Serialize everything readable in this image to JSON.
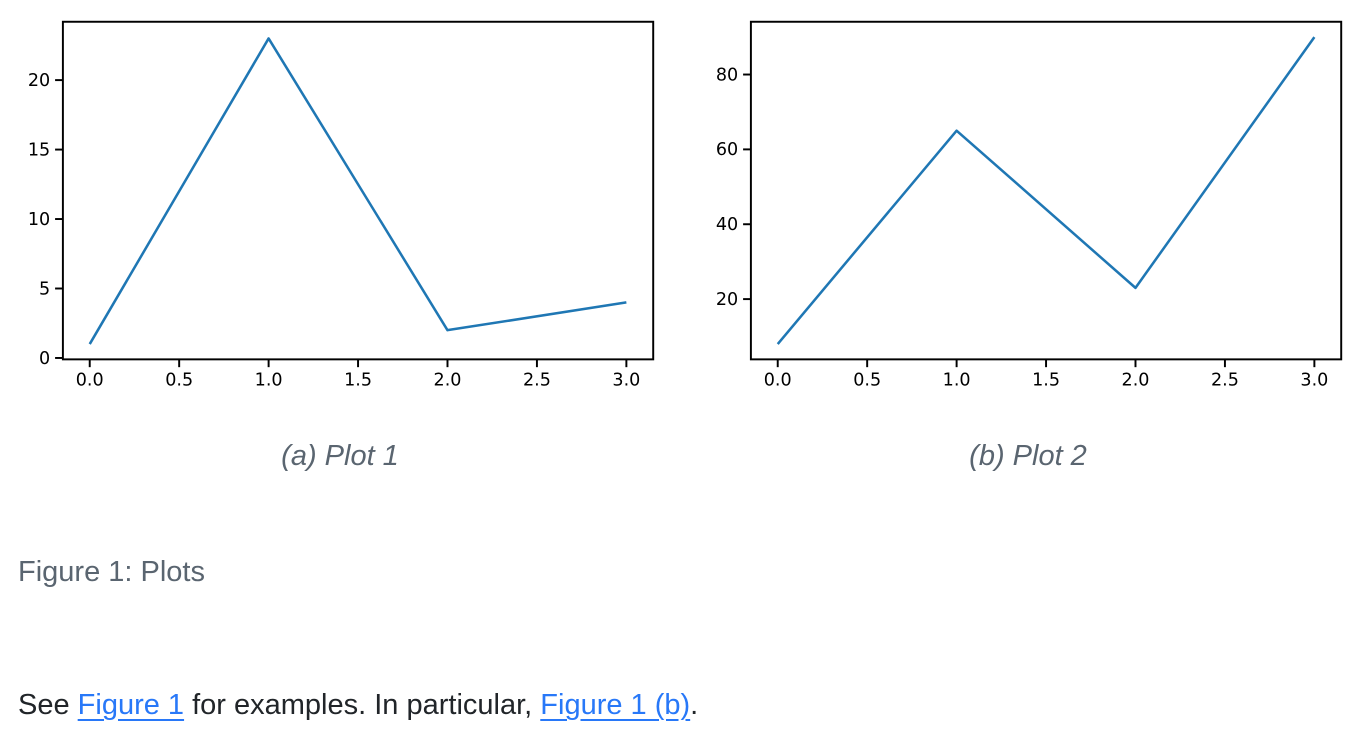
{
  "colors": {
    "line": "#1f77b4",
    "axis": "#000000",
    "link": "#2878f8",
    "caption": "#5a6570",
    "body_text": "#212529"
  },
  "figure": {
    "caption": "Figure 1: Plots",
    "subfigures": [
      {
        "label": "(a) Plot 1"
      },
      {
        "label": "(b) Plot 2"
      }
    ]
  },
  "paragraph": {
    "segments": [
      {
        "type": "text",
        "text": "See "
      },
      {
        "type": "link",
        "text": "Figure 1",
        "name": "figure-1-link"
      },
      {
        "type": "text",
        "text": " for examples. In particular, "
      },
      {
        "type": "link",
        "text": "Figure 1 (b)",
        "name": "figure-1b-link"
      },
      {
        "type": "text",
        "text": "."
      }
    ]
  },
  "chart_data": [
    {
      "type": "line",
      "title": "",
      "xlabel": "",
      "ylabel": "",
      "x": [
        0,
        1,
        2,
        3
      ],
      "values": [
        1,
        23,
        2,
        4
      ],
      "xlim": [
        -0.15,
        3.15
      ],
      "ylim": [
        -0.1,
        24.2
      ],
      "xticks": [
        0.0,
        0.5,
        1.0,
        1.5,
        2.0,
        2.5,
        3.0
      ],
      "xtick_labels": [
        "0.0",
        "0.5",
        "1.0",
        "1.5",
        "2.0",
        "2.5",
        "3.0"
      ],
      "yticks": [
        0,
        5,
        10,
        15,
        20
      ],
      "ytick_labels": [
        "0",
        "5",
        "10",
        "15",
        "20"
      ],
      "grid": false,
      "legend": "none",
      "line_color": "#1f77b4",
      "axis_color": "#000000"
    },
    {
      "type": "line",
      "title": "",
      "xlabel": "",
      "ylabel": "",
      "x": [
        0,
        1,
        2,
        3
      ],
      "values": [
        8,
        65,
        23,
        90
      ],
      "xlim": [
        -0.15,
        3.15
      ],
      "ylim": [
        3.9,
        94.1
      ],
      "xticks": [
        0.0,
        0.5,
        1.0,
        1.5,
        2.0,
        2.5,
        3.0
      ],
      "xtick_labels": [
        "0.0",
        "0.5",
        "1.0",
        "1.5",
        "2.0",
        "2.5",
        "3.0"
      ],
      "yticks": [
        20,
        40,
        60,
        80
      ],
      "ytick_labels": [
        "20",
        "40",
        "60",
        "80"
      ],
      "grid": false,
      "legend": "none",
      "line_color": "#1f77b4",
      "axis_color": "#000000"
    }
  ]
}
